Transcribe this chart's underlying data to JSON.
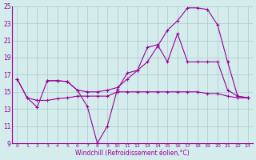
{
  "xlabel": "Windchill (Refroidissement éolien,°C)",
  "line_color": "#990099",
  "bg_color": "#d4ecec",
  "grid_color": "#aacccc",
  "xlim": [
    -0.5,
    23.5
  ],
  "ylim": [
    9,
    25
  ],
  "yticks": [
    9,
    11,
    13,
    15,
    17,
    19,
    21,
    23,
    25
  ],
  "xticks": [
    0,
    1,
    2,
    3,
    4,
    5,
    6,
    7,
    8,
    9,
    10,
    11,
    12,
    13,
    14,
    15,
    16,
    17,
    18,
    19,
    20,
    21,
    22,
    23
  ],
  "line1_x": [
    0,
    1,
    2,
    3,
    4,
    5,
    6,
    7,
    8,
    9,
    10,
    11,
    12,
    13,
    14,
    15,
    16,
    17,
    18,
    19,
    20,
    21,
    22,
    23
  ],
  "line1_y": [
    16.5,
    14.3,
    14.0,
    14.0,
    14.2,
    14.3,
    14.5,
    14.5,
    14.5,
    14.5,
    15.0,
    15.0,
    15.0,
    15.0,
    15.0,
    15.0,
    15.0,
    15.0,
    15.0,
    14.8,
    14.8,
    14.5,
    14.3,
    14.3
  ],
  "line2_x": [
    0,
    1,
    2,
    3,
    4,
    5,
    6,
    7,
    8,
    9,
    10,
    11,
    12,
    13,
    14,
    15,
    16,
    17,
    18,
    19,
    20,
    21,
    22,
    23
  ],
  "line2_y": [
    16.5,
    14.3,
    13.2,
    16.3,
    16.3,
    16.2,
    15.2,
    13.3,
    9.0,
    11.0,
    15.3,
    17.2,
    17.5,
    20.2,
    20.5,
    18.5,
    21.8,
    18.5,
    18.5,
    18.5,
    18.5,
    15.2,
    14.5,
    14.3
  ],
  "line3_x": [
    3,
    4,
    5,
    6,
    7,
    8,
    9,
    10,
    11,
    12,
    13,
    14,
    15,
    16,
    17,
    18,
    19,
    20,
    21,
    22,
    23
  ],
  "line3_y": [
    16.3,
    16.3,
    16.2,
    15.2,
    15.0,
    15.0,
    15.2,
    15.5,
    16.5,
    17.5,
    18.5,
    20.3,
    22.2,
    23.3,
    24.8,
    24.8,
    24.6,
    22.8,
    18.5,
    14.5,
    14.3
  ]
}
